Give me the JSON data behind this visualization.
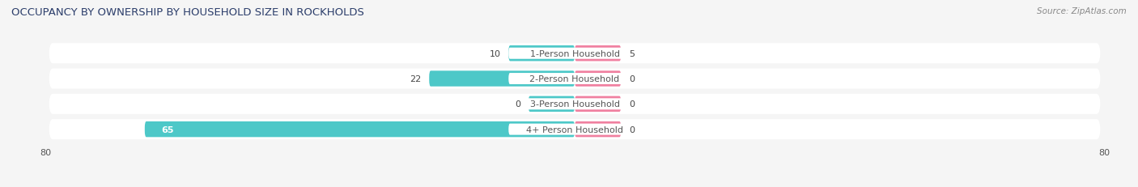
{
  "title": "OCCUPANCY BY OWNERSHIP BY HOUSEHOLD SIZE IN ROCKHOLDS",
  "source": "Source: ZipAtlas.com",
  "categories": [
    "1-Person Household",
    "2-Person Household",
    "3-Person Household",
    "4+ Person Household"
  ],
  "owner_values": [
    10,
    22,
    0,
    65
  ],
  "renter_values": [
    5,
    0,
    0,
    0
  ],
  "owner_color": "#4dc8c8",
  "renter_color": "#f080a0",
  "row_bg_color": "#e8e8e8",
  "background_color": "#f5f5f5",
  "xlim": 80,
  "title_fontsize": 9.5,
  "label_fontsize": 8,
  "value_fontsize": 8,
  "source_fontsize": 7.5,
  "legend_fontsize": 8,
  "owner_stub": 7,
  "renter_stub": 7
}
